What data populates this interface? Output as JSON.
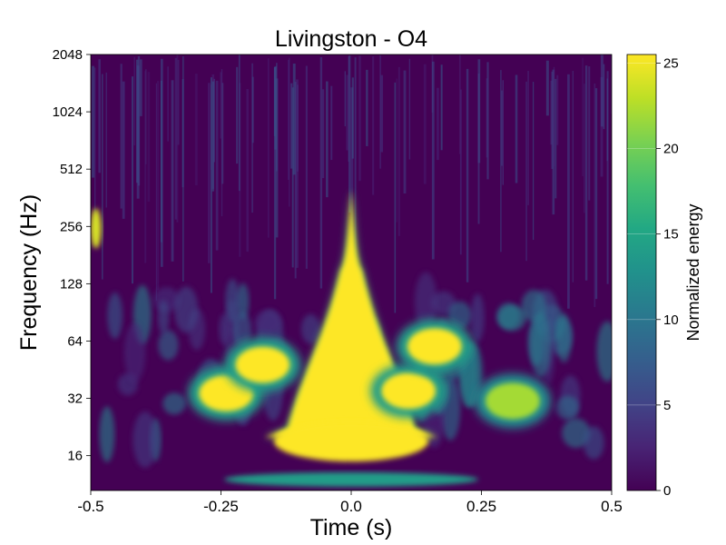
{
  "chart_data": {
    "type": "heatmap",
    "title": "Livingston - O4",
    "xlabel": "Time (s)",
    "ylabel": "Frequency (Hz)",
    "x_range": [
      -0.5,
      0.5
    ],
    "x_ticks": [
      {
        "value": -0.5,
        "label": "-0.5"
      },
      {
        "value": -0.25,
        "label": "-0.25"
      },
      {
        "value": 0.0,
        "label": "0.0"
      },
      {
        "value": 0.25,
        "label": "0.25"
      },
      {
        "value": 0.5,
        "label": "0.5"
      }
    ],
    "y_scale": "log2",
    "y_range": [
      10.5,
      2048
    ],
    "y_ticks": [
      {
        "value": 16,
        "label": "16"
      },
      {
        "value": 32,
        "label": "32"
      },
      {
        "value": 64,
        "label": "64"
      },
      {
        "value": 128,
        "label": "128"
      },
      {
        "value": 256,
        "label": "256"
      },
      {
        "value": 512,
        "label": "512"
      },
      {
        "value": 1024,
        "label": "1024"
      },
      {
        "value": 2048,
        "label": "2048"
      }
    ],
    "colorbar": {
      "label": "Normalized energy",
      "range": [
        0,
        25.5
      ],
      "colormap": "viridis",
      "ticks": [
        {
          "value": 0,
          "label": "0"
        },
        {
          "value": 5,
          "label": "5"
        },
        {
          "value": 10,
          "label": "10"
        },
        {
          "value": 15,
          "label": "15"
        },
        {
          "value": 20,
          "label": "20"
        },
        {
          "value": 25,
          "label": "25"
        }
      ]
    },
    "features": [
      {
        "time": 0.0,
        "freq_low": 20,
        "freq_high": 400,
        "energy": 25.5,
        "shape": "chirp-core"
      },
      {
        "time": 0.0,
        "freq": 19,
        "energy": 25.5,
        "shape": "broad-base"
      },
      {
        "time": -0.24,
        "freq": 34,
        "energy": 25.5,
        "shape": "blob"
      },
      {
        "time": -0.17,
        "freq": 48,
        "energy": 25.5,
        "shape": "blob"
      },
      {
        "time": 0.11,
        "freq": 35,
        "energy": 25.5,
        "shape": "blob"
      },
      {
        "time": 0.16,
        "freq": 60,
        "energy": 25.5,
        "shape": "blob"
      },
      {
        "time": 0.31,
        "freq": 31,
        "energy": 22,
        "shape": "blob"
      },
      {
        "time": -0.49,
        "freq": 250,
        "energy": 24,
        "shape": "edge"
      },
      {
        "time": 0.0,
        "freq": 12,
        "energy": 14,
        "shape": "low-band"
      }
    ]
  }
}
